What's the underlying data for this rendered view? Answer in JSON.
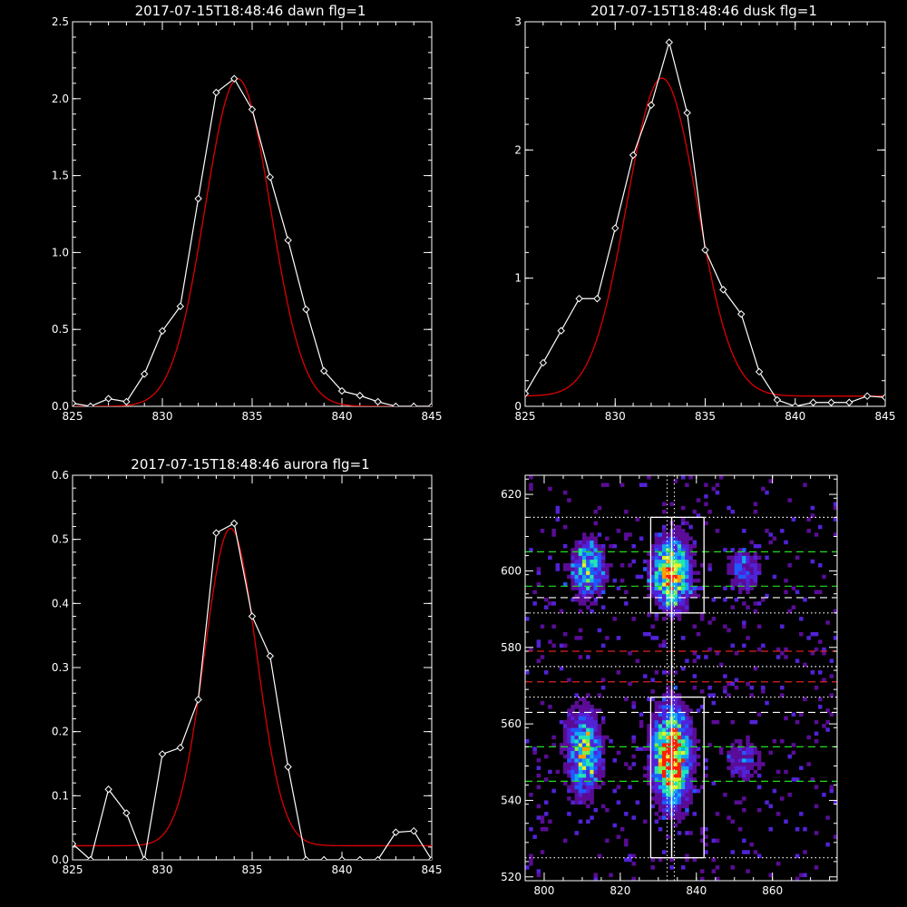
{
  "colors": {
    "background": "#000000",
    "axes": "#ffffff",
    "data": "#ffffff",
    "fit": "#dd0000"
  },
  "chart_data": [
    {
      "type": "line",
      "title": "2017-07-15T18:48:46 dawn flg=1",
      "xlim": [
        825,
        845
      ],
      "ylim": [
        0,
        2.5
      ],
      "xticks": [
        "825",
        "830",
        "835",
        "840",
        "845"
      ],
      "yticks": [
        "0.0",
        "0.5",
        "1.0",
        "1.5",
        "2.0",
        "2.5"
      ],
      "series": [
        {
          "x": [
            825,
            826,
            827,
            828,
            829,
            830,
            831,
            832,
            833,
            834,
            835,
            836,
            837,
            838,
            839,
            840,
            841,
            842,
            843,
            844,
            845
          ],
          "y": [
            0.02,
            0.0,
            0.05,
            0.03,
            0.21,
            0.49,
            0.65,
            1.35,
            2.04,
            2.13,
            1.93,
            1.49,
            1.08,
            0.63,
            0.23,
            0.1,
            0.07,
            0.03,
            0.0,
            0.0,
            0.0
          ],
          "marker": "diamond",
          "color": "#ffffff"
        },
        {
          "fit": "gaussian",
          "amplitude": 2.13,
          "center": 834.2,
          "sigma": 1.82,
          "offset": 0.0,
          "color": "#dd0000"
        }
      ]
    },
    {
      "type": "line",
      "title": "2017-07-15T18:48:46 dusk flg=1",
      "xlim": [
        825,
        845
      ],
      "ylim": [
        0,
        3
      ],
      "xticks": [
        "825",
        "830",
        "835",
        "840",
        "845"
      ],
      "yticks": [
        "0",
        "1",
        "2",
        "3"
      ],
      "series": [
        {
          "x": [
            825,
            826,
            827,
            828,
            829,
            830,
            831,
            832,
            833,
            834,
            835,
            836,
            837,
            838,
            839,
            840,
            841,
            842,
            843,
            844,
            845
          ],
          "y": [
            0.1,
            0.34,
            0.59,
            0.84,
            0.84,
            1.39,
            1.96,
            2.35,
            2.84,
            2.29,
            1.22,
            0.91,
            0.72,
            0.27,
            0.05,
            0.0,
            0.03,
            0.03,
            0.03,
            0.08,
            0.07
          ],
          "marker": "diamond",
          "color": "#ffffff"
        },
        {
          "fit": "gaussian",
          "amplitude": 2.48,
          "center": 832.6,
          "sigma": 1.95,
          "offset": 0.08,
          "color": "#dd0000"
        }
      ]
    },
    {
      "type": "line",
      "title": "2017-07-15T18:48:46 aurora flg=1",
      "xlim": [
        825,
        845
      ],
      "ylim": [
        0,
        0.6
      ],
      "xticks": [
        "825",
        "830",
        "835",
        "840",
        "845"
      ],
      "yticks": [
        "0.0",
        "0.1",
        "0.2",
        "0.3",
        "0.4",
        "0.5",
        "0.6"
      ],
      "series": [
        {
          "x": [
            825,
            826,
            827,
            828,
            829,
            830,
            831,
            832,
            833,
            834,
            835,
            836,
            837,
            838,
            839,
            840,
            841,
            842,
            843,
            844,
            845
          ],
          "y": [
            0.025,
            0.0,
            0.11,
            0.073,
            0.0,
            0.165,
            0.175,
            0.25,
            0.51,
            0.525,
            0.38,
            0.318,
            0.145,
            0.0,
            0.0,
            0.0,
            0.0,
            0.0,
            0.043,
            0.045,
            0.0
          ],
          "marker": "diamond",
          "color": "#ffffff"
        },
        {
          "fit": "gaussian",
          "amplitude": 0.495,
          "center": 833.8,
          "sigma": 1.45,
          "offset": 0.022,
          "color": "#dd0000"
        }
      ]
    },
    {
      "type": "heatmap",
      "xlim": [
        795,
        877
      ],
      "ylim": [
        519,
        625
      ],
      "xticks": [
        "800",
        "820",
        "840",
        "860"
      ],
      "yticks": [
        "520",
        "540",
        "560",
        "580",
        "600",
        "620"
      ],
      "colormap": [
        "#3a0060",
        "#5a0c96",
        "#5222d8",
        "#1f5aff",
        "#12aaf0",
        "#22e6b4",
        "#78f050",
        "#e6f028",
        "#ffa000",
        "#ff1e00"
      ],
      "emission_columns": [
        {
          "center_x": 811,
          "center_y": 600,
          "sigma_x": 3,
          "sigma_y": 5,
          "peak": 0.55
        },
        {
          "center_x": 810,
          "center_y": 552,
          "sigma_x": 3,
          "sigma_y": 7,
          "peak": 0.62
        },
        {
          "center_x": 833,
          "center_y": 599,
          "sigma_x": 3.2,
          "sigma_y": 6,
          "peak": 0.85
        },
        {
          "center_x": 833,
          "center_y": 551,
          "sigma_x": 3.2,
          "sigma_y": 8,
          "peak": 1.0
        },
        {
          "center_x": 852,
          "center_y": 600,
          "sigma_x": 3,
          "sigma_y": 4,
          "peak": 0.28
        },
        {
          "center_x": 852,
          "center_y": 550,
          "sigma_x": 3,
          "sigma_y": 4,
          "peak": 0.25
        }
      ],
      "boxes": [
        {
          "x": [
            828,
            842
          ],
          "y": [
            589,
            614
          ]
        },
        {
          "x": [
            828,
            842
          ],
          "y": [
            525,
            567
          ]
        }
      ],
      "hlines": [
        {
          "y": 614,
          "color": "#ffffff",
          "style": "dotted"
        },
        {
          "y": 605,
          "color": "#22dd22",
          "style": "dashed"
        },
        {
          "y": 596,
          "color": "#22dd22",
          "style": "dashed"
        },
        {
          "y": 593,
          "color": "#ffffff",
          "style": "dashed"
        },
        {
          "y": 589,
          "color": "#ffffff",
          "style": "dotted"
        },
        {
          "y": 579,
          "color": "#dd2222",
          "style": "dashed"
        },
        {
          "y": 575,
          "color": "#ffffff",
          "style": "dotted"
        },
        {
          "y": 571,
          "color": "#dd2222",
          "style": "dashed"
        },
        {
          "y": 567,
          "color": "#ffffff",
          "style": "dotted"
        },
        {
          "y": 563,
          "color": "#ffffff",
          "style": "dashed"
        },
        {
          "y": 554,
          "color": "#22dd22",
          "style": "dashed"
        },
        {
          "y": 545,
          "color": "#22dd22",
          "style": "dashed"
        },
        {
          "y": 525,
          "color": "#ffffff",
          "style": "dotted"
        }
      ],
      "vlines": [
        {
          "x": 832.3,
          "color": "#ffffff",
          "style": "dotted"
        },
        {
          "x": 834.2,
          "color": "#ffffff",
          "style": "dotted"
        }
      ],
      "center_track": {
        "x": 833.5,
        "y": [
          525,
          614
        ],
        "color": "#ffffff"
      }
    }
  ]
}
